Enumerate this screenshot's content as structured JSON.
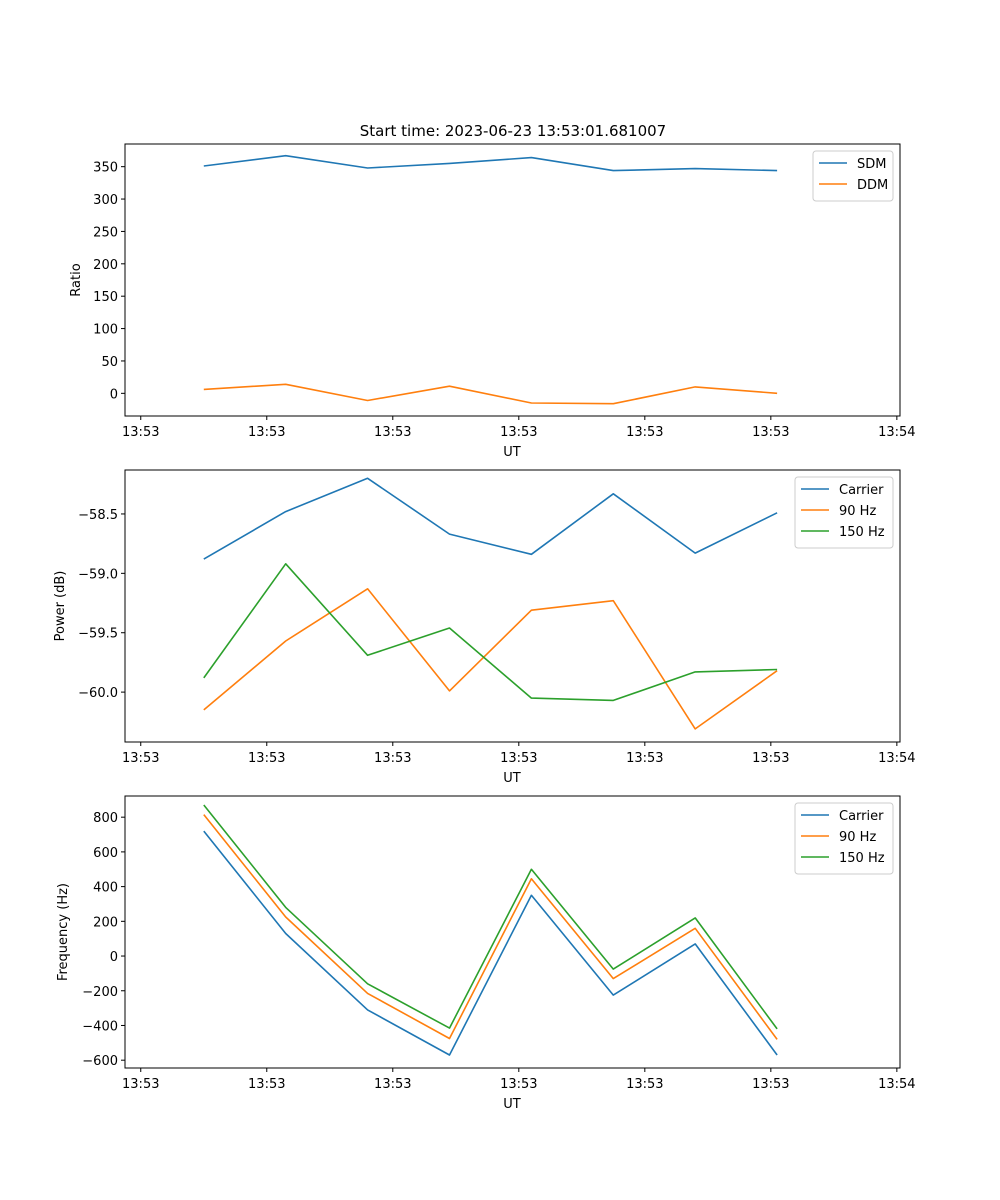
{
  "figure": {
    "title": "Start time: 2023-06-23 13:53:01.681007"
  },
  "colors": {
    "blue": "#1f77b4",
    "orange": "#ff7f0e",
    "green": "#2ca02c"
  },
  "chart_data": [
    {
      "type": "line",
      "title": "Start time: 2023-06-23 13:53:01.681007",
      "xlabel": "UT",
      "ylabel": "Ratio",
      "x_tick_labels": [
        "13:53",
        "13:53",
        "13:53",
        "13:53",
        "13:53",
        "13:53",
        "13:54"
      ],
      "x_tick_positions": [
        0,
        2,
        4,
        6,
        8,
        10,
        12
      ],
      "xlim": [
        -0.25,
        12.05
      ],
      "ylim": [
        -35,
        385
      ],
      "y_ticks": [
        0,
        50,
        100,
        150,
        200,
        250,
        300,
        350
      ],
      "y_tick_labels": [
        "0",
        "50",
        "100",
        "150",
        "200",
        "250",
        "300",
        "350"
      ],
      "x": [
        1,
        2.3,
        3.6,
        4.9,
        6.2,
        7.5,
        8.8,
        10.1
      ],
      "series": [
        {
          "name": "SDM",
          "color": "#1f77b4",
          "values": [
            351,
            367,
            348,
            355,
            364,
            344,
            347,
            344
          ]
        },
        {
          "name": "DDM",
          "color": "#ff7f0e",
          "values": [
            6,
            14,
            -11,
            11,
            -15,
            -16,
            10,
            0
          ]
        }
      ],
      "legend": "upper right",
      "grid": false
    },
    {
      "type": "line",
      "title": "",
      "xlabel": "UT",
      "ylabel": "Power (dB)",
      "x_tick_labels": [
        "13:53",
        "13:53",
        "13:53",
        "13:53",
        "13:53",
        "13:53",
        "13:54"
      ],
      "x_tick_positions": [
        0,
        2,
        4,
        6,
        8,
        10,
        12
      ],
      "xlim": [
        -0.25,
        12.05
      ],
      "ylim": [
        -60.42,
        -58.13
      ],
      "y_ticks": [
        -60.0,
        -59.5,
        -59.0,
        -58.5
      ],
      "y_tick_labels": [
        "−60.0",
        "−59.5",
        "−59.0",
        "−58.5"
      ],
      "x": [
        1,
        2.3,
        3.6,
        4.9,
        6.2,
        7.5,
        8.8,
        10.1
      ],
      "series": [
        {
          "name": "Carrier",
          "color": "#1f77b4",
          "values": [
            -58.88,
            -58.48,
            -58.2,
            -58.67,
            -58.84,
            -58.33,
            -58.83,
            -58.49
          ]
        },
        {
          "name": "90 Hz",
          "color": "#ff7f0e",
          "values": [
            -60.15,
            -59.57,
            -59.13,
            -59.99,
            -59.31,
            -59.23,
            -60.31,
            -59.82
          ]
        },
        {
          "name": "150 Hz",
          "color": "#2ca02c",
          "values": [
            -59.88,
            -58.92,
            -59.69,
            -59.46,
            -60.05,
            -60.07,
            -59.83,
            -59.81
          ]
        }
      ],
      "legend": "upper right",
      "grid": false
    },
    {
      "type": "line",
      "title": "",
      "xlabel": "UT",
      "ylabel": "Frequency (Hz)",
      "x_tick_labels": [
        "13:53",
        "13:53",
        "13:53",
        "13:53",
        "13:53",
        "13:53",
        "13:54"
      ],
      "x_tick_positions": [
        0,
        2,
        4,
        6,
        8,
        10,
        12
      ],
      "xlim": [
        -0.25,
        12.05
      ],
      "ylim": [
        -645,
        922
      ],
      "y_ticks": [
        -600,
        -400,
        -200,
        0,
        200,
        400,
        600,
        800
      ],
      "y_tick_labels": [
        "−600",
        "−400",
        "−200",
        "0",
        "200",
        "400",
        "600",
        "800"
      ],
      "x": [
        1,
        2.3,
        3.6,
        4.9,
        6.2,
        7.5,
        8.8,
        10.1
      ],
      "series": [
        {
          "name": "Carrier",
          "color": "#1f77b4",
          "values": [
            720,
            130,
            -310,
            -570,
            350,
            -225,
            70,
            -570
          ]
        },
        {
          "name": "90 Hz",
          "color": "#ff7f0e",
          "values": [
            815,
            225,
            -215,
            -475,
            445,
            -130,
            160,
            -480
          ]
        },
        {
          "name": "150 Hz",
          "color": "#2ca02c",
          "values": [
            870,
            280,
            -160,
            -415,
            500,
            -75,
            220,
            -420
          ]
        }
      ],
      "legend": "upper right",
      "grid": false
    }
  ]
}
